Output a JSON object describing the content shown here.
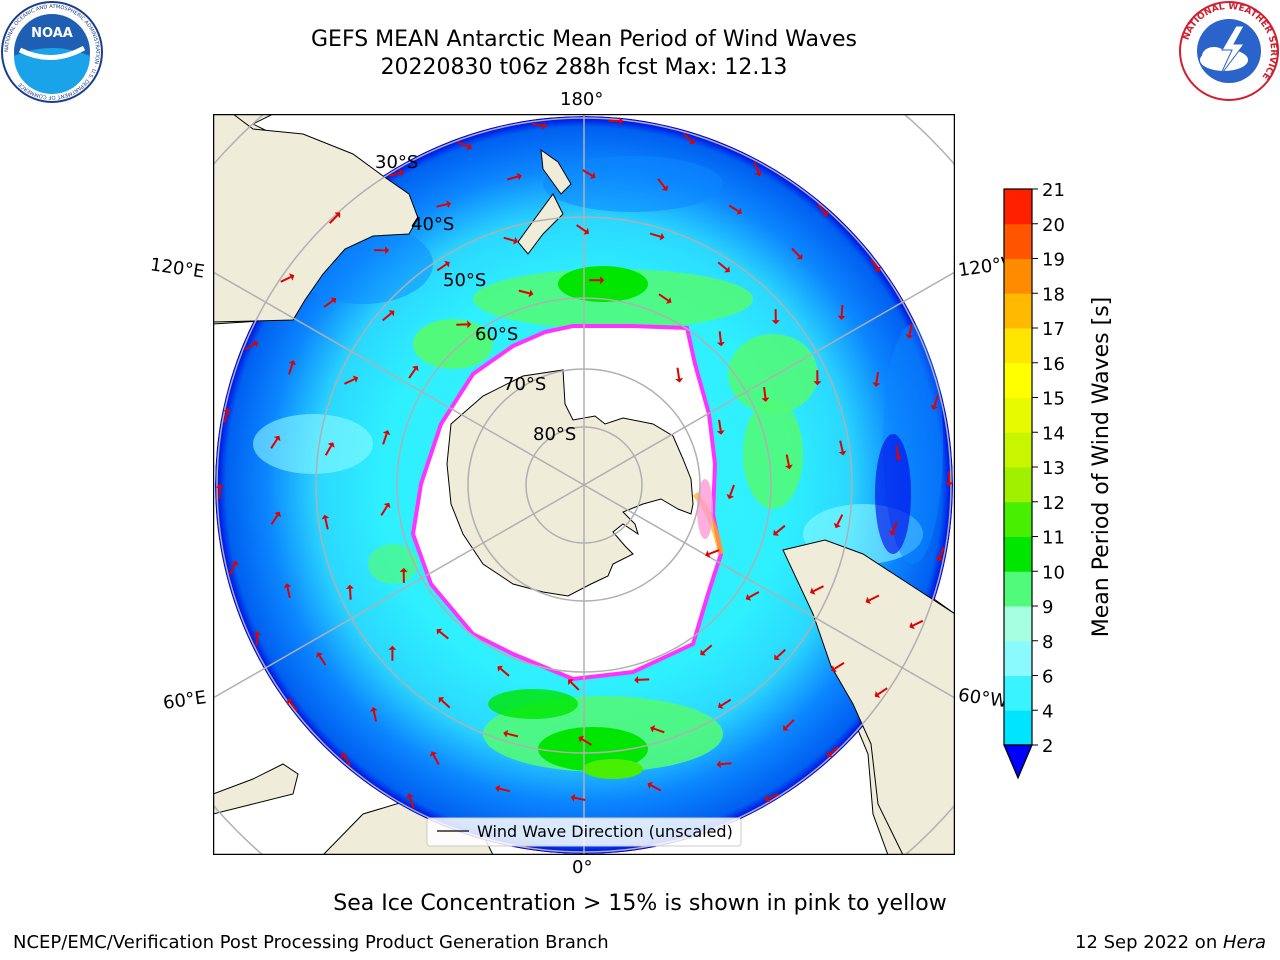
{
  "title_line1": "GEFS MEAN Antarctic Mean Period of Wind Waves",
  "title_line2": "20220830 t06z 288h fcst   Max: 12.13",
  "map": {
    "projection": "south-polar-stereographic",
    "lon_labels": {
      "top": "180°",
      "bottom": "0°",
      "left_upper": "120°E",
      "left_lower": "60°E",
      "right_upper": "120°W",
      "right_lower": "60°W"
    },
    "lat_labels": [
      "30°S",
      "40°S",
      "50°S",
      "60°S",
      "70°S",
      "80°S"
    ],
    "legend_label": "Wind Wave Direction (unscaled)",
    "colors": {
      "land": "#efecd9",
      "ocean_edge": "#0000e6",
      "arrow": "#e00000",
      "grid": "#b0b0b0",
      "ice_edge": "#ff33ff"
    }
  },
  "colorbar": {
    "label": "Mean Period of Wind Waves [s]",
    "ticks": [
      "2",
      "4",
      "6",
      "8",
      "9",
      "10",
      "11",
      "12",
      "13",
      "14",
      "15",
      "16",
      "17",
      "18",
      "19",
      "20",
      "21"
    ],
    "colors": [
      "#0076ff",
      "#00e5ff",
      "#39f3ff",
      "#8afaff",
      "#a6ffe0",
      "#51fa7a",
      "#00e600",
      "#48f000",
      "#a0f000",
      "#c8f500",
      "#e8fa00",
      "#ffff00",
      "#ffe600",
      "#ffb900",
      "#ff8c00",
      "#ff5500",
      "#ff2000",
      "#ff0000"
    ]
  },
  "ice_note": "Sea Ice Concentration > 15% is shown in pink to yellow",
  "footer_left": "NCEP/EMC/Verification Post Processing Product Generation Branch",
  "footer_date": "12 Sep 2022 on ",
  "footer_machine": "Hera",
  "noaa_logo": {
    "text": "NOAA",
    "ring_text": "NATIONAL OCEANIC AND ATMOSPHERIC ADMINISTRATION · U.S. DEPARTMENT OF COMMERCE"
  },
  "nws_logo": {
    "ring_text": "NATIONAL WEATHER SERVICE"
  }
}
